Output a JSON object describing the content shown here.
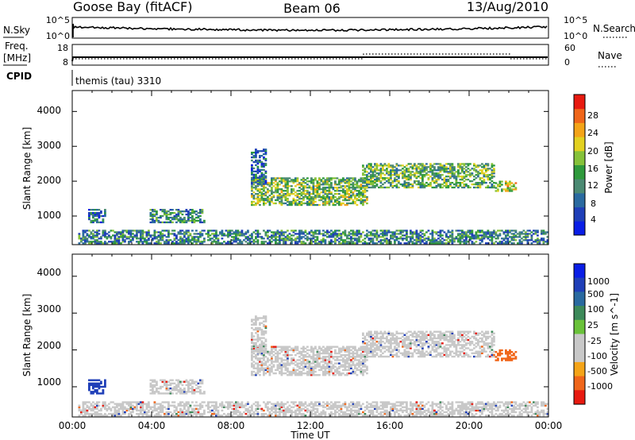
{
  "header": {
    "radar": "Goose Bay (fitACF)",
    "beam": "Beam 06",
    "date": "13/Aug/2010"
  },
  "noise_panel": {
    "left_label": "N.Sky",
    "left_ticks": [
      "10^5",
      "10^0"
    ],
    "right_label": "N.Search",
    "right_ticks": [
      "10^5",
      "10^0"
    ]
  },
  "freq_panel": {
    "left_label_line1": "Freq.",
    "left_label_line2": "[MHz]",
    "left_ticks": [
      "18",
      "8"
    ],
    "right_label": "Nave",
    "right_ticks": [
      "60",
      "0"
    ],
    "cpid_label": "CPID",
    "cpid_text": "themis (tau) 3310"
  },
  "colors": {
    "power_scale": [
      "#0a1ee6",
      "#1f3fb8",
      "#2a6aa0",
      "#4b8a73",
      "#2f9a3c",
      "#86c23a",
      "#e3d120",
      "#f4a418",
      "#f0661a",
      "#e81a10"
    ],
    "velocity_scale": [
      "#0a1ee6",
      "#1f3fb8",
      "#2a6aa0",
      "#3d8a5a",
      "#6ac23a",
      "#c8c8c8",
      "#c8c8c8",
      "#f4a418",
      "#f0661a",
      "#e81a10"
    ],
    "ground_scatter": "#c8c8c8"
  },
  "chart_data": [
    {
      "type": "heatmap",
      "ylabel": "Slant Range [km]",
      "xlabel": "Time UT",
      "x_ticks": [
        "00:00",
        "04:00",
        "08:00",
        "12:00",
        "16:00",
        "20:00",
        "00:00"
      ],
      "xlim_hours": [
        0,
        24
      ],
      "y_ticks": [
        "1000",
        "2000",
        "3000",
        "4000"
      ],
      "ylim_km": [
        180,
        4600
      ],
      "colorbar": {
        "label": "Power [dB]",
        "ticks": [
          "4",
          "8",
          "12",
          "16",
          "20",
          "24",
          "28"
        ],
        "range": [
          0,
          30
        ]
      },
      "regions": [
        {
          "t": [
            0.3,
            24.0
          ],
          "r": [
            200,
            600
          ],
          "value": 10
        },
        {
          "t": [
            0.8,
            1.7
          ],
          "r": [
            800,
            1200
          ],
          "value": 8
        },
        {
          "t": [
            3.9,
            6.6
          ],
          "r": [
            800,
            1200
          ],
          "value": 10
        },
        {
          "t": [
            9.0,
            14.8
          ],
          "r": [
            1300,
            2100
          ],
          "value": 15
        },
        {
          "t": [
            9.0,
            9.7
          ],
          "r": [
            1900,
            2900
          ],
          "value": 8
        },
        {
          "t": [
            14.6,
            21.3
          ],
          "r": [
            1800,
            2500
          ],
          "value": 14
        },
        {
          "t": [
            21.3,
            22.4
          ],
          "r": [
            1700,
            2000
          ],
          "value": 18
        }
      ]
    },
    {
      "type": "heatmap",
      "ylabel": "Slant Range [km]",
      "xlabel": "Time UT",
      "x_ticks": [
        "00:00",
        "04:00",
        "08:00",
        "12:00",
        "16:00",
        "20:00",
        "00:00"
      ],
      "xlim_hours": [
        0,
        24
      ],
      "y_ticks": [
        "1000",
        "2000",
        "3000",
        "4000"
      ],
      "ylim_km": [
        180,
        4600
      ],
      "colorbar": {
        "label": "Velocity [m s^-1]",
        "ticks": [
          "1000",
          "500",
          "100",
          "25",
          "-25",
          "-100",
          "-500",
          "-1000"
        ]
      },
      "regions": [
        {
          "t": [
            0.3,
            24.0
          ],
          "r": [
            200,
            600
          ],
          "value": "ground"
        },
        {
          "t": [
            0.8,
            1.7
          ],
          "r": [
            800,
            1200
          ],
          "value": 150
        },
        {
          "t": [
            3.9,
            6.6
          ],
          "r": [
            800,
            1200
          ],
          "value": "ground"
        },
        {
          "t": [
            9.0,
            14.8
          ],
          "r": [
            1300,
            2100
          ],
          "value": "ground"
        },
        {
          "t": [
            9.0,
            9.7
          ],
          "r": [
            1900,
            2900
          ],
          "value": "ground"
        },
        {
          "t": [
            14.6,
            21.3
          ],
          "r": [
            1800,
            2500
          ],
          "value": "ground"
        },
        {
          "t": [
            21.3,
            22.4
          ],
          "r": [
            1700,
            2000
          ],
          "value": -100
        }
      ]
    }
  ]
}
